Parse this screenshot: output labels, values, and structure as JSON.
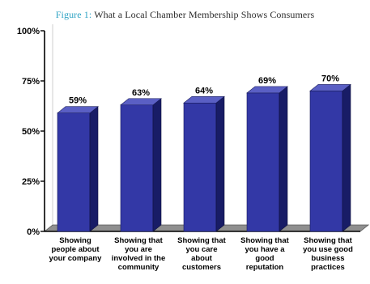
{
  "chart_data": {
    "type": "bar",
    "title_prefix": "Figure 1:",
    "title": "What a Local Chamber Membership Shows Consumers",
    "categories": [
      [
        "Showing",
        "people about",
        "your company"
      ],
      [
        "Showing that",
        "you are",
        "involved in the",
        "community"
      ],
      [
        "Showing that",
        "you care",
        "about",
        "customers"
      ],
      [
        "Showing that",
        "you have a",
        "good",
        "reputation"
      ],
      [
        "Showing that",
        "you use good",
        "business",
        "practices"
      ]
    ],
    "values": [
      59,
      63,
      64,
      69,
      70
    ],
    "data_labels": [
      "59%",
      "63%",
      "64%",
      "69%",
      "70%"
    ],
    "ylim": [
      0,
      100
    ],
    "yticks": [
      {
        "value": 0,
        "label": "0%"
      },
      {
        "value": 25,
        "label": "25%"
      },
      {
        "value": 50,
        "label": "50%"
      },
      {
        "value": 75,
        "label": "75%"
      },
      {
        "value": 100,
        "label": "100%"
      }
    ],
    "grid": false,
    "legend": "none",
    "colors": {
      "bar_front": "#3338a6",
      "bar_side": "#181c66",
      "bar_top": "#5a5fc4",
      "floor": "#8f8f8f",
      "axis": "#000000",
      "title_prefix": "#2fa3c4",
      "title": "#2b2b2b"
    }
  }
}
